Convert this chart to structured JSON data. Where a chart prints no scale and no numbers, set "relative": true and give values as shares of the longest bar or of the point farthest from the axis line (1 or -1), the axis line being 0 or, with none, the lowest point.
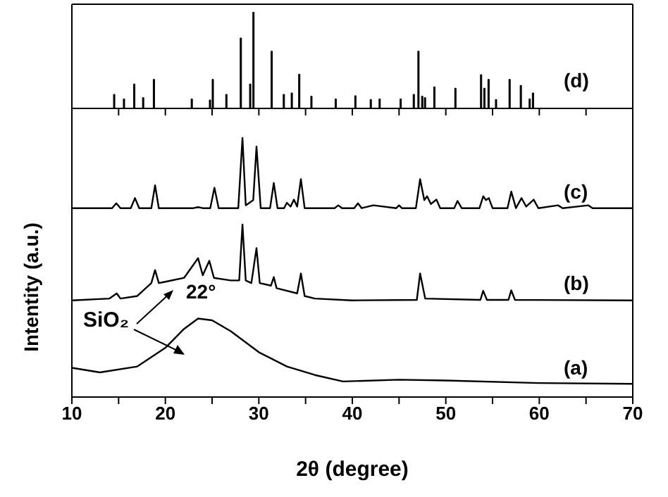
{
  "chart_data": [
    {
      "type": "bar",
      "relative": true,
      "tick_labels": false,
      "xlim": [
        10,
        70
      ],
      "xticks": [
        10,
        15,
        20,
        25,
        30,
        35,
        40,
        45,
        50,
        55,
        60,
        65,
        70
      ],
      "series": [
        {
          "name": "(d)",
          "color": "#000000",
          "x": [
            14.6,
            15.65,
            16.75,
            17.7,
            18.85,
            22.9,
            24.85,
            25.15,
            26.6,
            28.15,
            29.15,
            29.5,
            31.45,
            32.75,
            33.6,
            34.4,
            35.7,
            38.3,
            40.4,
            42.05,
            43.0,
            45.25,
            46.65,
            47.15,
            47.55,
            47.85,
            48.85,
            51.1,
            53.85,
            54.2,
            54.65,
            55.45,
            56.9,
            58.1,
            59.05,
            59.4
          ],
          "values": [
            0.146,
            0.098,
            0.254,
            0.112,
            0.302,
            0.098,
            0.088,
            0.302,
            0.146,
            0.732,
            0.254,
            1,
            0.595,
            0.146,
            0.161,
            0.356,
            0.127,
            0.098,
            0.132,
            0.093,
            0.098,
            0.098,
            0.146,
            0.595,
            0.127,
            0.112,
            0.224,
            0.21,
            0.351,
            0.21,
            0.302,
            0.093,
            0.302,
            0.239,
            0.098,
            0.161
          ]
        }
      ]
    },
    {
      "type": "line",
      "relative": true,
      "xlabel": "2θ (degree)",
      "ylabel": "Intentity (a.u.)",
      "xlim": [
        10,
        70
      ],
      "xticks": [
        10,
        {
          "value": 15,
          "label": null
        },
        20,
        {
          "value": 25,
          "label": null
        },
        30,
        {
          "value": 35,
          "label": null
        },
        40,
        {
          "value": 45,
          "label": null
        },
        50,
        {
          "value": 55,
          "label": null
        },
        60,
        {
          "value": 65,
          "label": null
        },
        70
      ],
      "annotations": [
        {
          "text": "22°",
          "x": 23.5,
          "y": 0.303
        },
        "SiO₂"
      ],
      "series": [
        {
          "name": "(c)",
          "color": "#000000",
          "x": [
            10,
            14.3,
            14.75,
            15.2,
            16.3,
            16.75,
            17.2,
            18.5,
            18.9,
            19.3,
            23,
            23.5,
            24,
            24.8,
            25.25,
            25.7,
            27.8,
            28.25,
            28.6,
            29,
            29.4,
            29.75,
            30.2,
            31.2,
            31.6,
            32,
            32.7,
            33,
            33.4,
            33.75,
            34.1,
            34.5,
            34.9,
            38.1,
            38.5,
            38.9,
            40.2,
            40.6,
            41,
            42.25,
            44.7,
            45,
            45.3,
            46.8,
            47.25,
            47.7,
            48,
            48.4,
            49,
            49.4,
            50.9,
            51.25,
            51.7,
            53.6,
            54,
            54.3,
            54.6,
            55,
            56.6,
            57,
            57.5,
            58.1,
            58.6,
            59.4,
            59.9,
            62,
            62.5,
            65.25,
            65.7,
            70
          ],
          "values": [
            0.729,
            0.729,
            0.748,
            0.729,
            0.729,
            0.768,
            0.729,
            0.729,
            0.817,
            0.729,
            0.729,
            0.733,
            0.729,
            0.729,
            0.808,
            0.729,
            0.729,
            1,
            0.74,
            0.75,
            0.76,
            0.967,
            0.729,
            0.729,
            0.826,
            0.729,
            0.729,
            0.75,
            0.735,
            0.762,
            0.735,
            0.841,
            0.729,
            0.729,
            0.74,
            0.729,
            0.729,
            0.748,
            0.729,
            0.74,
            0.729,
            0.74,
            0.729,
            0.729,
            0.841,
            0.76,
            0.775,
            0.745,
            0.762,
            0.729,
            0.729,
            0.757,
            0.729,
            0.729,
            0.775,
            0.76,
            0.768,
            0.729,
            0.729,
            0.793,
            0.729,
            0.768,
            0.735,
            0.762,
            0.729,
            0.74,
            0.729,
            0.74,
            0.729,
            0.729
          ]
        },
        {
          "name": "(b)",
          "color": "#000000",
          "x": [
            10,
            14,
            14.8,
            15.2,
            17,
            18.5,
            18.9,
            19.3,
            20,
            22,
            23.5,
            24,
            24.7,
            25.2,
            27,
            27.9,
            28.25,
            28.6,
            29.2,
            29.75,
            30.1,
            31.3,
            31.6,
            31.9,
            34.1,
            34.5,
            34.9,
            36,
            40,
            46.9,
            47.25,
            47.8,
            53.7,
            54,
            54.4,
            56.7,
            57,
            57.4,
            70
          ],
          "values": [
            0.373,
            0.38,
            0.4,
            0.38,
            0.39,
            0.44,
            0.49,
            0.44,
            0.445,
            0.46,
            0.536,
            0.47,
            0.526,
            0.46,
            0.45,
            0.45,
            0.666,
            0.45,
            0.44,
            0.575,
            0.44,
            0.43,
            0.463,
            0.42,
            0.4,
            0.477,
            0.39,
            0.38,
            0.373,
            0.375,
            0.477,
            0.38,
            0.375,
            0.41,
            0.375,
            0.375,
            0.412,
            0.375,
            0.373
          ]
        },
        {
          "name": "(a)",
          "color": "#000000",
          "x": [
            10,
            13,
            17,
            20,
            22,
            23.5,
            25,
            27,
            30,
            33,
            36,
            39,
            45,
            50,
            60,
            70
          ],
          "values": [
            0.113,
            0.095,
            0.118,
            0.19,
            0.263,
            0.303,
            0.296,
            0.254,
            0.173,
            0.118,
            0.085,
            0.06,
            0.067,
            0.064,
            0.054,
            0.051
          ]
        }
      ]
    }
  ]
}
